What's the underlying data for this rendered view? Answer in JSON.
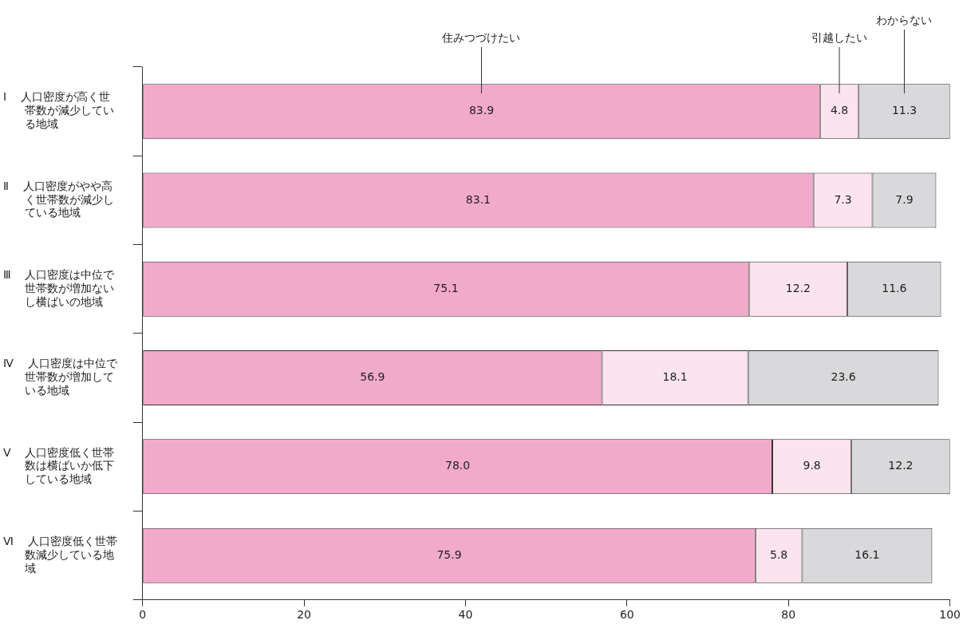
{
  "chart_data": {
    "type": "bar",
    "orientation": "horizontal",
    "stacked": true,
    "grid": false,
    "legend": false,
    "categories": [
      "Ⅰ 人口密度が高く世帯数が減少している地域",
      "Ⅱ 人口密度がやや高く世帯数が減少している地域",
      "Ⅲ 人口密度は中位で世帯数が増加ないし横ばいの地域",
      "Ⅳ 人口密度は中位で世帯数が増加している地域",
      "Ⅴ 人口密度低く世帯数は横ばいか低下している地域",
      "Ⅵ 人口密度低く世帯数減少している地域"
    ],
    "series": [
      {
        "name": "住みつづけたい",
        "color": "#f2aacb",
        "values": [
          83.9,
          83.1,
          75.1,
          56.9,
          78.0,
          75.9
        ],
        "value_labels": [
          "83.9",
          "83.1",
          "75.1",
          "56.9",
          "78.0",
          "75.9"
        ]
      },
      {
        "name": "引越したい",
        "color": "#fce4ef",
        "values": [
          4.8,
          7.3,
          12.2,
          18.1,
          9.8,
          5.8
        ],
        "value_labels": [
          "4.8",
          "7.3",
          "12.2",
          "18.1",
          "9.8",
          "5.8"
        ]
      },
      {
        "name": "わからない",
        "color": "#d9d9db",
        "values": [
          11.3,
          7.9,
          11.6,
          23.6,
          12.2,
          16.1
        ],
        "value_labels": [
          "11.3",
          "7.9",
          "11.6",
          "23.6",
          "12.2",
          "16.1"
        ]
      }
    ],
    "xlim": [
      0,
      100
    ],
    "xticks": [
      0,
      20,
      40,
      60,
      80,
      100
    ]
  }
}
